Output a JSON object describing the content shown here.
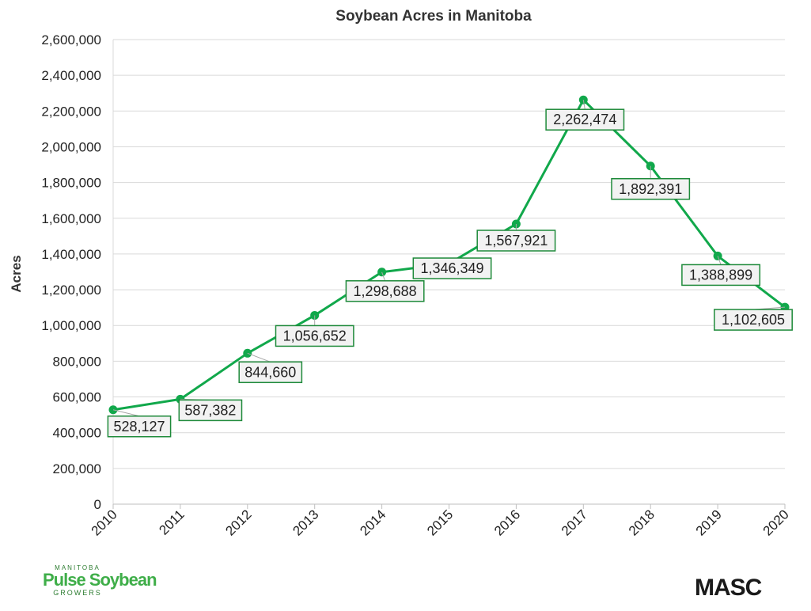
{
  "chart_data": {
    "type": "line",
    "title": "Soybean Acres in Manitoba",
    "xlabel": "",
    "ylabel": "Acres",
    "categories": [
      "2010",
      "2011",
      "2012",
      "2013",
      "2014",
      "2015",
      "2016",
      "2017",
      "2018",
      "2019",
      "2020"
    ],
    "values": [
      528127,
      587382,
      844660,
      1056652,
      1298688,
      1346349,
      1567921,
      2262474,
      1892391,
      1388899,
      1102605
    ],
    "data_labels": [
      "528,127",
      "587,382",
      "844,660",
      "1,056,652",
      "1,298,688",
      "1,346,349",
      "1,567,921",
      "2,262,474",
      "1,892,391",
      "1,388,899",
      "1,102,605"
    ],
    "ylim": [
      0,
      2600000
    ],
    "yticks": [
      0,
      200000,
      400000,
      600000,
      800000,
      1000000,
      1200000,
      1400000,
      1600000,
      1800000,
      2000000,
      2200000,
      2400000,
      2600000
    ],
    "ytick_labels": [
      "0",
      "200,000",
      "400,000",
      "600,000",
      "800,000",
      "1,000,000",
      "1,200,000",
      "1,400,000",
      "1,600,000",
      "1,800,000",
      "2,000,000",
      "2,200,000",
      "2,400,000",
      "2,600,000"
    ],
    "grid": true,
    "line_color": "#11a84b",
    "label_border_color": "#1e8a3a",
    "label_fill_color": "#f2f2f2"
  },
  "logos": {
    "left": {
      "top": "MANITOBA",
      "name": "Pulse Soybean",
      "bottom": "GROWERS"
    },
    "right": {
      "name": "MASC"
    }
  }
}
